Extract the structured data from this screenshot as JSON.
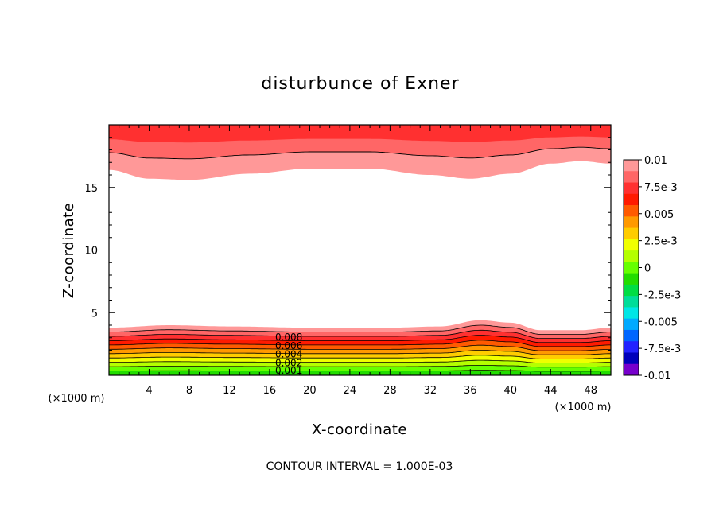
{
  "chart_data": {
    "type": "contour",
    "title": "disturbunce of Exner",
    "xlabel": "X-coordinate",
    "ylabel": "Z-coordinate",
    "x_unit_label": "(×1000 m)",
    "y_unit_label": "(×1000 m)",
    "xlim": [
      0,
      50
    ],
    "ylim": [
      0,
      20
    ],
    "x_ticks": [
      4,
      8,
      12,
      16,
      20,
      24,
      28,
      32,
      36,
      40,
      44,
      48
    ],
    "x_tick_labels": [
      "4",
      "8",
      "12",
      "16",
      "20",
      "24",
      "28",
      "32",
      "36",
      "40",
      "44",
      "48"
    ],
    "y_ticks": [
      5,
      10,
      15
    ],
    "y_tick_labels": [
      "5",
      "10",
      "15"
    ],
    "contour_interval_text": "CONTOUR INTERVAL = 1.000E-03",
    "contour_interval": 0.001,
    "contour_labels": [
      "0.008",
      "0.006",
      "0.004",
      "0.002",
      "0.001"
    ],
    "colorbar": {
      "range": [
        -0.01,
        0.01
      ],
      "tick_values": [
        0.01,
        0.0075,
        0.005,
        0.0025,
        0,
        -0.0025,
        -0.005,
        -0.0075,
        -0.01
      ],
      "tick_labels": [
        "0.01",
        "7.5e-3",
        "0.005",
        "2.5e-3",
        "0",
        "-2.5e-3",
        "-0.005",
        "-7.5e-3",
        "-0.01"
      ],
      "colors_top_to_bottom": [
        "#ff9898",
        "#ff6666",
        "#ff3030",
        "#ff1a00",
        "#ff5a00",
        "#ff9900",
        "#ffcc00",
        "#f0ff00",
        "#b4ff00",
        "#66ff00",
        "#22dd00",
        "#00dd44",
        "#00dd99",
        "#00e6e6",
        "#00aaff",
        "#0066ff",
        "#2222ff",
        "#0000bb",
        "#7700cc"
      ]
    },
    "lower_band": {
      "description_level_values": [
        0.001,
        0.002,
        0.003,
        0.004,
        0.005,
        0.006,
        0.007,
        0.008,
        0.009,
        0.01
      ],
      "top_height_profile": {
        "x": [
          0,
          6,
          12,
          20,
          28,
          33,
          37,
          40,
          43,
          47,
          50
        ],
        "z": [
          3.8,
          4.0,
          3.9,
          3.8,
          3.8,
          3.9,
          4.4,
          4.2,
          3.6,
          3.6,
          3.8
        ]
      }
    },
    "upper_band": {
      "level_values": [
        0.01,
        0.009,
        0.008
      ],
      "bottom_height_profile": {
        "x": [
          0,
          4,
          8,
          14,
          20,
          26,
          32,
          36,
          40,
          44,
          47,
          50
        ],
        "z": [
          16.4,
          15.7,
          15.6,
          16.1,
          16.5,
          16.5,
          16.0,
          15.7,
          16.1,
          16.9,
          17.1,
          16.9
        ]
      }
    }
  }
}
